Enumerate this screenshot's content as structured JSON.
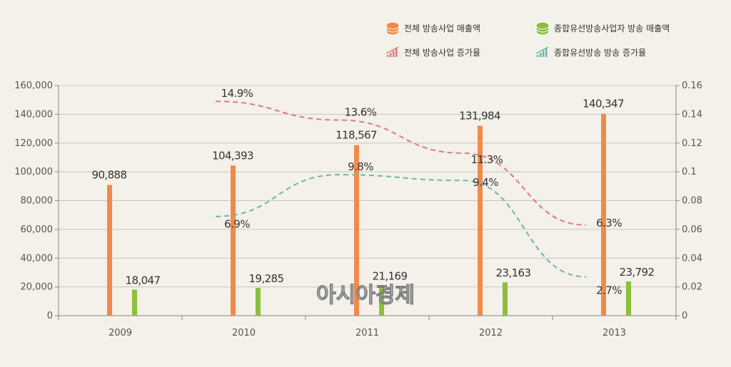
{
  "chart_data": {
    "type": "bar",
    "categories": [
      "2009",
      "2010",
      "2011",
      "2012",
      "2013"
    ],
    "series": [
      {
        "name": "전체 방송사업 매출액",
        "kind": "bar",
        "axis": "left",
        "color": "#f08a4b",
        "values": [
          90888,
          104393,
          118567,
          131984,
          140347
        ],
        "labels": [
          "90,888",
          "104,393",
          "118,567",
          "131,984",
          "140,347"
        ]
      },
      {
        "name": "종합유선방송사업자 방송 매출액",
        "kind": "bar",
        "axis": "left",
        "color": "#8bbf3c",
        "values": [
          18047,
          19285,
          21169,
          23163,
          23792
        ],
        "labels": [
          "18,047",
          "19,285",
          "21,169",
          "23,163",
          "23,792"
        ]
      },
      {
        "name": "전체 방송사업 증가율",
        "kind": "line",
        "axis": "right",
        "color": "#e07a7a",
        "x": [
          "2010",
          "2011",
          "2012",
          "2013"
        ],
        "values": [
          0.149,
          0.136,
          0.113,
          0.063
        ],
        "labels": [
          "14.9%",
          "13.6%",
          "11.3%",
          "6.3%"
        ]
      },
      {
        "name": "종합유선방송 방송 증가율",
        "kind": "line",
        "axis": "right",
        "color": "#6fb5ad",
        "x": [
          "2010",
          "2011",
          "2012",
          "2013"
        ],
        "values": [
          0.069,
          0.098,
          0.094,
          0.027
        ],
        "labels": [
          "6.9%",
          "9.8%",
          "9.4%",
          "2.7%"
        ]
      }
    ],
    "y_left": {
      "ylim": [
        0,
        160000
      ],
      "ticks": [
        "0",
        "20,000",
        "40,000",
        "60,000",
        "80,000",
        "100,000",
        "120,000",
        "140,000",
        "160,000"
      ]
    },
    "y_right": {
      "ylim": [
        0,
        0.16
      ],
      "ticks": [
        "0",
        "0.02",
        "0.04",
        "0.06",
        "0.08",
        "0.1",
        "0.12",
        "0.14",
        "0.16"
      ]
    },
    "grid": true,
    "legend_position": "top-right"
  },
  "legend": [
    {
      "label": "전체 방송사업 매출액",
      "icon": "orange-coin-stack-icon"
    },
    {
      "label": "종합유선방송사업자 방송 매출액",
      "icon": "green-coin-stack-icon"
    },
    {
      "label": "전체 방송사업 증가율",
      "icon": "red-rising-bars-icon"
    },
    {
      "label": "종합유선방송 방송 증가율",
      "icon": "teal-rising-bars-icon"
    }
  ],
  "watermark": "아시아경제"
}
